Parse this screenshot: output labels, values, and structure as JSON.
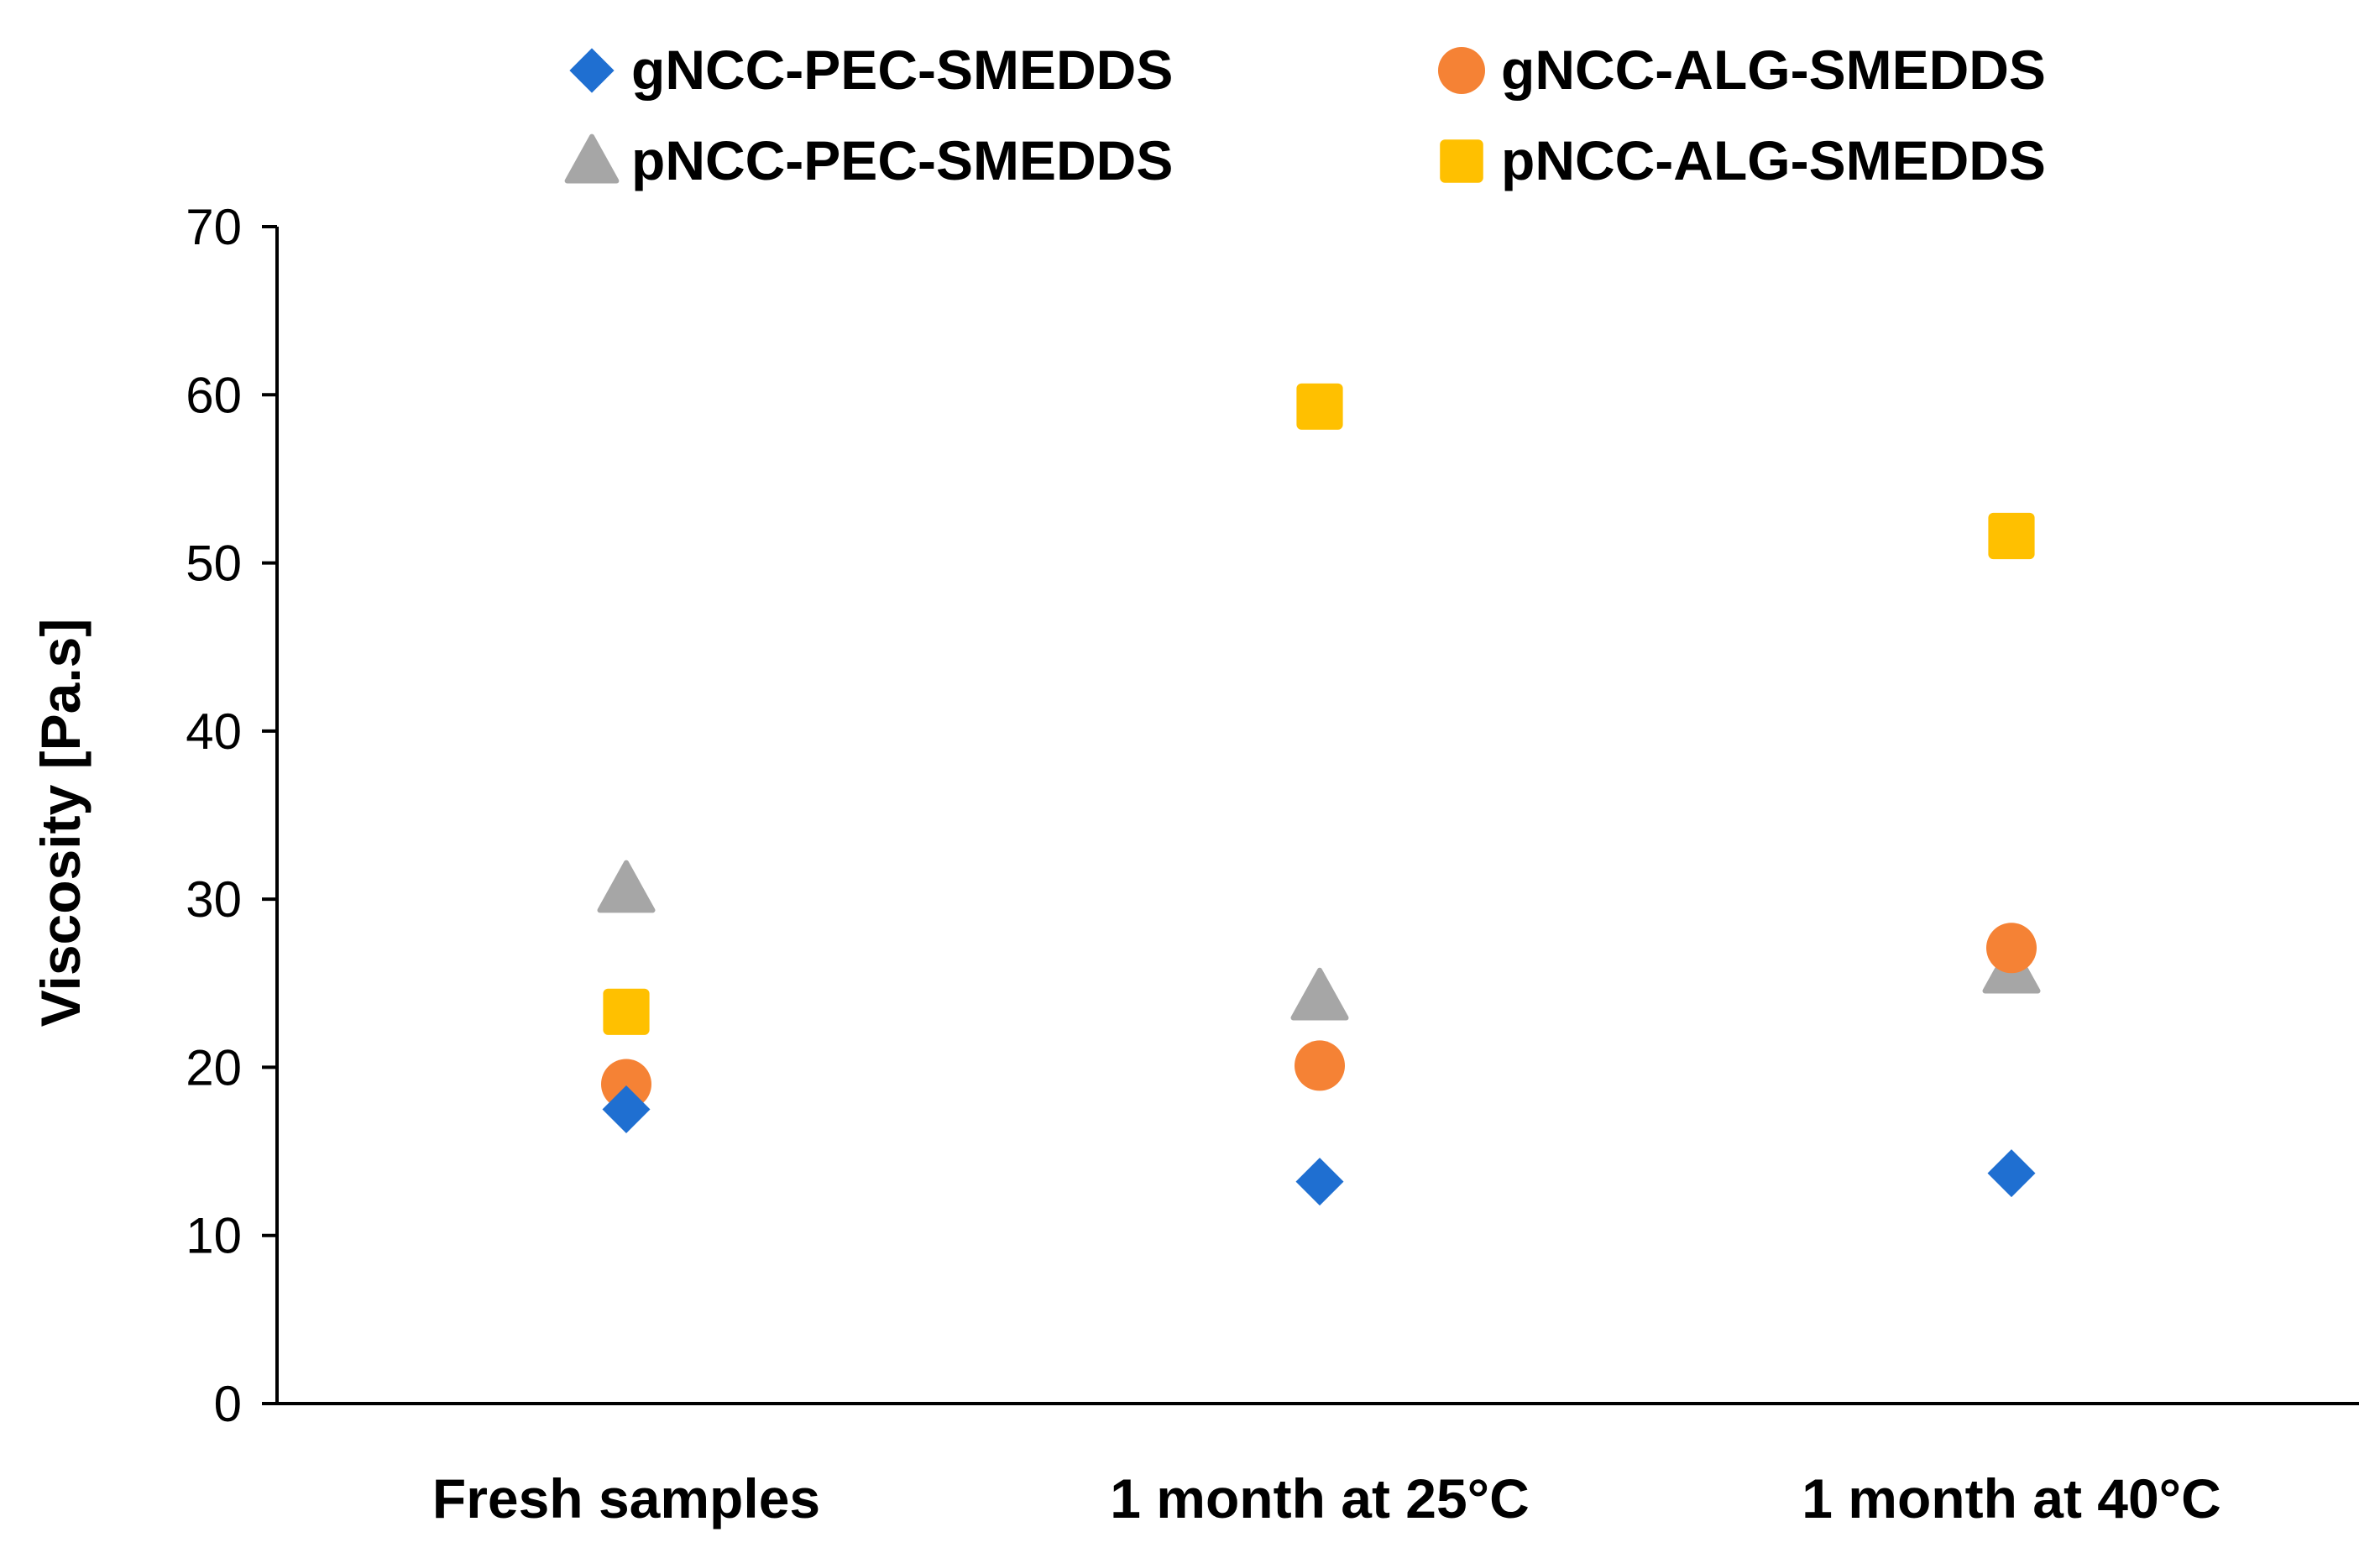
{
  "chart_data": {
    "type": "scatter",
    "title": "",
    "xlabel": "",
    "ylabel": "Viscosity [Pa.s]",
    "ylim": [
      0,
      70
    ],
    "yticks": [
      0,
      10,
      20,
      30,
      40,
      50,
      60,
      70
    ],
    "grid": false,
    "legend_position": "top",
    "categories": [
      "Fresh samples",
      "1 month at 25°C",
      "1 month at 40°C"
    ],
    "series": [
      {
        "name": "gNCC-PEC-SMEDDS",
        "marker": "diamond",
        "color": "#1f6fd1",
        "values": [
          17.5,
          13.2,
          13.7
        ]
      },
      {
        "name": "gNCC-ALG-SMEDDS",
        "marker": "circle",
        "color": "#f58235",
        "values": [
          19.0,
          20.1,
          27.1
        ]
      },
      {
        "name": "pNCC-PEC-SMEDDS",
        "marker": "triangle",
        "color": "#a6a6a6",
        "values": [
          30.6,
          24.2,
          25.8
        ]
      },
      {
        "name": "pNCC-ALG-SMEDDS",
        "marker": "square",
        "color": "#ffc000",
        "values": [
          23.3,
          59.3,
          51.6
        ]
      }
    ]
  }
}
